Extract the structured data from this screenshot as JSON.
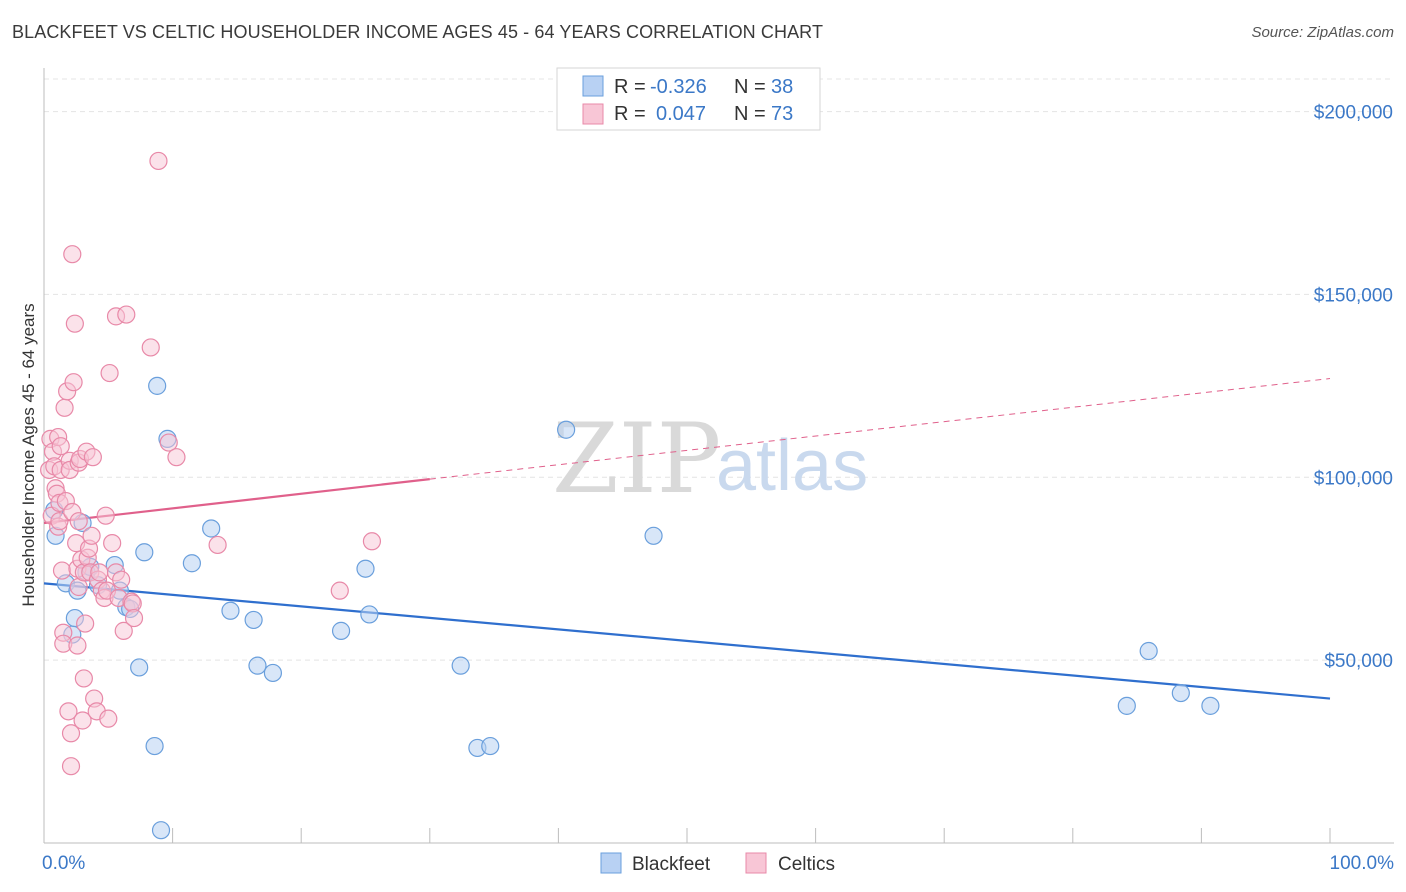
{
  "title": "BLACKFEET VS CELTIC HOUSEHOLDER INCOME AGES 45 - 64 YEARS CORRELATION CHART",
  "source": "Source: ZipAtlas.com",
  "watermark": {
    "part1": "ZIP",
    "part2": "atlas"
  },
  "colors": {
    "blackfeet_fill": "#b8d1f3",
    "blackfeet_stroke": "#6a9fdc",
    "blackfeet_line": "#2f6fce",
    "celtics_fill": "#f8c6d6",
    "celtics_stroke": "#e889a8",
    "celtics_line": "#e0608b",
    "grid": "#e4e4e4",
    "axis": "#bdbdbd"
  },
  "legend": {
    "rows": [
      {
        "r_label": "R =",
        "r_value": "-0.326",
        "n_label": "N =",
        "n_value": "38"
      },
      {
        "r_label": "R =",
        "r_value": "0.047",
        "n_label": "N =",
        "n_value": "73"
      }
    ]
  },
  "chart_data": {
    "type": "scatter",
    "xlabel": "",
    "ylabel": "Householder Income Ages 45 - 64 years",
    "xlim": [
      0,
      100
    ],
    "ylim": [
      0,
      210000
    ],
    "x_tick_labels": [
      "0.0%",
      "100.0%"
    ],
    "y_ticks": [
      50000,
      100000,
      150000,
      200000
    ],
    "y_tick_labels": [
      "$50,000",
      "$100,000",
      "$150,000",
      "$200,000"
    ],
    "legend_position": "top-center",
    "bottom_legend": [
      "Blackfeet",
      "Celtics"
    ],
    "series": [
      {
        "name": "Blackfeet",
        "trend": {
          "x": [
            0,
            100
          ],
          "y": [
            71000,
            39500
          ],
          "style": "solid"
        },
        "points": [
          [
            0.8,
            91000
          ],
          [
            0.9,
            84000
          ],
          [
            1.7,
            71000
          ],
          [
            2.2,
            57000
          ],
          [
            2.4,
            61500
          ],
          [
            2.6,
            69000
          ],
          [
            3.0,
            87500
          ],
          [
            3.3,
            74000
          ],
          [
            3.6,
            75500
          ],
          [
            4.2,
            70500
          ],
          [
            5.5,
            76000
          ],
          [
            5.9,
            69000
          ],
          [
            6.4,
            64500
          ],
          [
            6.7,
            64000
          ],
          [
            7.4,
            48000
          ],
          [
            7.8,
            79500
          ],
          [
            8.6,
            26500
          ],
          [
            8.8,
            125000
          ],
          [
            9.1,
            3500
          ],
          [
            9.6,
            110500
          ],
          [
            11.5,
            76500
          ],
          [
            13.0,
            86000
          ],
          [
            14.5,
            63500
          ],
          [
            16.3,
            61000
          ],
          [
            16.6,
            48500
          ],
          [
            17.8,
            46500
          ],
          [
            23.1,
            58000
          ],
          [
            25.0,
            75000
          ],
          [
            25.3,
            62500
          ],
          [
            32.4,
            48500
          ],
          [
            33.7,
            26000
          ],
          [
            34.7,
            26500
          ],
          [
            40.6,
            113000
          ],
          [
            47.4,
            84000
          ],
          [
            84.2,
            37500
          ],
          [
            85.9,
            52500
          ],
          [
            88.4,
            41000
          ],
          [
            90.7,
            37500
          ]
        ]
      },
      {
        "name": "Celtics",
        "trend": {
          "x": [
            0,
            30,
            100
          ],
          "y": [
            87500,
            99500,
            127000
          ],
          "style": "solid-then-dashed"
        },
        "points": [
          [
            0.4,
            102000
          ],
          [
            0.5,
            110500
          ],
          [
            0.6,
            89500
          ],
          [
            0.7,
            107000
          ],
          [
            0.8,
            103000
          ],
          [
            0.9,
            97000
          ],
          [
            1.0,
            95500
          ],
          [
            1.1,
            111000
          ],
          [
            1.1,
            86500
          ],
          [
            1.2,
            93000
          ],
          [
            1.2,
            88000
          ],
          [
            1.3,
            102000
          ],
          [
            1.3,
            108500
          ],
          [
            1.4,
            74500
          ],
          [
            1.5,
            57500
          ],
          [
            1.5,
            54500
          ],
          [
            1.6,
            119000
          ],
          [
            1.7,
            93500
          ],
          [
            1.8,
            123500
          ],
          [
            1.9,
            36000
          ],
          [
            2.0,
            104500
          ],
          [
            2.0,
            102000
          ],
          [
            2.1,
            30000
          ],
          [
            2.1,
            21000
          ],
          [
            2.2,
            161000
          ],
          [
            2.2,
            90500
          ],
          [
            2.3,
            126000
          ],
          [
            2.4,
            142000
          ],
          [
            2.5,
            82000
          ],
          [
            2.6,
            54000
          ],
          [
            2.6,
            75000
          ],
          [
            2.7,
            70000
          ],
          [
            2.7,
            104000
          ],
          [
            2.7,
            88000
          ],
          [
            2.8,
            105000
          ],
          [
            2.9,
            77500
          ],
          [
            3.0,
            33500
          ],
          [
            3.1,
            45000
          ],
          [
            3.1,
            74000
          ],
          [
            3.2,
            60000
          ],
          [
            3.3,
            107000
          ],
          [
            3.4,
            78000
          ],
          [
            3.5,
            80500
          ],
          [
            3.6,
            74000
          ],
          [
            3.7,
            84000
          ],
          [
            3.8,
            105500
          ],
          [
            3.9,
            39500
          ],
          [
            4.1,
            36000
          ],
          [
            4.2,
            72000
          ],
          [
            4.3,
            74000
          ],
          [
            4.5,
            69000
          ],
          [
            4.7,
            67000
          ],
          [
            4.8,
            89500
          ],
          [
            4.9,
            69000
          ],
          [
            5.0,
            34000
          ],
          [
            5.1,
            128500
          ],
          [
            5.3,
            82000
          ],
          [
            5.6,
            74000
          ],
          [
            5.6,
            144000
          ],
          [
            5.8,
            67000
          ],
          [
            6.0,
            72000
          ],
          [
            6.2,
            58000
          ],
          [
            6.4,
            144500
          ],
          [
            6.8,
            66000
          ],
          [
            6.9,
            65500
          ],
          [
            7.0,
            61500
          ],
          [
            8.3,
            135500
          ],
          [
            8.9,
            186500
          ],
          [
            9.7,
            109500
          ],
          [
            10.3,
            105500
          ],
          [
            13.5,
            81500
          ],
          [
            25.5,
            82500
          ],
          [
            23.0,
            69000
          ]
        ]
      }
    ]
  }
}
